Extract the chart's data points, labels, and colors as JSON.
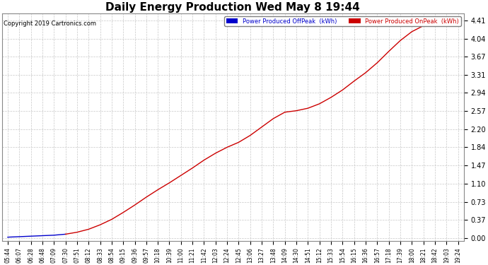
{
  "title": "Daily Energy Production Wed May 8 19:44",
  "copyright_text": "Copyright 2019 Cartronics.com",
  "legend_offpeak_label": "Power Produced OffPeak  (kWh)",
  "legend_onpeak_label": "Power Produced OnPeak  (kWh)",
  "legend_offpeak_color": "#0000cc",
  "legend_onpeak_color": "#cc0000",
  "background_color": "#ffffff",
  "plot_background_color": "#ffffff",
  "grid_color": "#c8c8c8",
  "title_fontsize": 11,
  "ylabel_values": [
    0.0,
    0.37,
    0.73,
    1.1,
    1.47,
    1.84,
    2.2,
    2.57,
    2.94,
    3.31,
    3.67,
    4.04,
    4.41
  ],
  "ymax": 4.55,
  "ymin": -0.05,
  "x_tick_labels": [
    "05:44",
    "06:07",
    "06:28",
    "06:48",
    "07:09",
    "07:30",
    "07:51",
    "08:12",
    "08:33",
    "08:54",
    "09:15",
    "09:36",
    "09:57",
    "10:18",
    "10:39",
    "11:00",
    "11:21",
    "11:42",
    "12:03",
    "12:24",
    "12:45",
    "13:06",
    "13:27",
    "13:48",
    "14:09",
    "14:30",
    "14:51",
    "15:12",
    "15:33",
    "15:54",
    "16:15",
    "16:36",
    "16:57",
    "17:18",
    "17:39",
    "18:00",
    "18:21",
    "18:42",
    "19:03",
    "19:24"
  ],
  "split_idx": 5,
  "offpeak_y": [
    0.02,
    0.03,
    0.04,
    0.05,
    0.06,
    0.08
  ],
  "onpeak_y": [
    0.08,
    0.12,
    0.18,
    0.27,
    0.38,
    0.52,
    0.67,
    0.83,
    0.98,
    1.12,
    1.27,
    1.42,
    1.58,
    1.72,
    1.84,
    1.94,
    2.08,
    2.25,
    2.42,
    2.55,
    2.58,
    2.63,
    2.72,
    2.85,
    3.0,
    3.18,
    3.35,
    3.55,
    3.78,
    4.0,
    4.18,
    4.3,
    4.37,
    4.4,
    4.41
  ]
}
